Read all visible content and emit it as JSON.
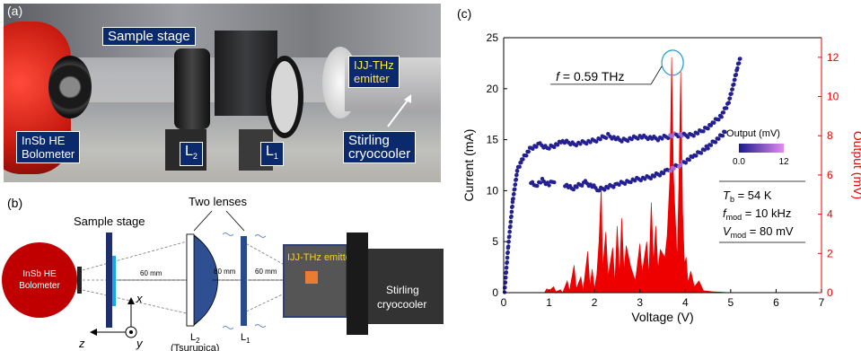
{
  "panel_a": {
    "letter": "(a)",
    "labels": {
      "sample_stage": "Sample stage",
      "ijj_line1": "IJJ-THz",
      "ijj_line2": "emitter",
      "insb_line1": "InSb HE",
      "insb_line2": "Bolometer",
      "l2_main": "L",
      "l2_sub": "2",
      "l1_main": "L",
      "l1_sub": "1",
      "stirling_line1": "Stirling",
      "stirling_line2": "cryocooler"
    }
  },
  "panel_b": {
    "letter": "(b)",
    "two_lenses": "Two lenses",
    "sample_stage": "Sample stage",
    "insb_line1": "InSb HE",
    "insb_line2": "Bolometer",
    "dist1": "60 mm",
    "dist2": "80 mm",
    "dist3": "60 mm",
    "ijj_emitter": "IJJ-THz emitter",
    "stirling_line1": "Stirling",
    "stirling_line2": "cryocooler",
    "l2_main": "L",
    "l2_sub": "2",
    "l2_note": "(Tsurupica)",
    "l1_main": "L",
    "l1_sub": "1",
    "axis_x": "x",
    "axis_y": "y",
    "axis_z": "z"
  },
  "chart_data": {
    "letter": "(c)",
    "type": "scatter",
    "xlabel": "Voltage (V)",
    "ylabel_left": "Current (mA)",
    "ylabel_right": "Output (mV)",
    "xlim": [
      0,
      7
    ],
    "ylim_left": [
      0,
      25
    ],
    "ylim_right": [
      0,
      13
    ],
    "x_ticks": [
      "0",
      "1",
      "2",
      "3",
      "4",
      "5",
      "6",
      "7"
    ],
    "y_left_ticks": [
      "0",
      "5",
      "10",
      "15",
      "20",
      "25"
    ],
    "y_right_ticks": [
      "0",
      "2",
      "4",
      "6",
      "8",
      "10",
      "12"
    ],
    "colorbar": {
      "title": "Output (mV)",
      "min_label": "0.0",
      "max_label": "12",
      "color_low": "#1a1a8c",
      "color_high": "#e28cf0"
    },
    "annotation": {
      "f_symbol": "f",
      "text": " = 0.59 THz",
      "x": 3.72,
      "y_right": 12.0
    },
    "params": [
      {
        "sym": "T",
        "sub": "b",
        "val": " = 54 K"
      },
      {
        "sym": "f",
        "sub": "mod",
        "val": " = 10 kHz"
      },
      {
        "sym": "V",
        "sub": "mod",
        "val": " = 80 mV"
      }
    ],
    "iv_branches": [
      {
        "name": "outer",
        "points": [
          [
            0.02,
            0.2
          ],
          [
            0.1,
            4.5
          ],
          [
            0.2,
            9.0
          ],
          [
            0.3,
            12.0
          ],
          [
            0.4,
            13.0
          ],
          [
            0.5,
            13.6
          ],
          [
            0.6,
            14.2
          ],
          [
            0.8,
            14.5
          ],
          [
            1.0,
            14.2
          ],
          [
            1.3,
            14.8
          ],
          [
            1.6,
            14.6
          ],
          [
            2.0,
            14.9
          ],
          [
            2.3,
            15.4
          ],
          [
            2.6,
            14.9
          ],
          [
            3.0,
            15.3
          ],
          [
            3.4,
            15.1
          ],
          [
            3.8,
            15.5
          ],
          [
            4.1,
            15.4
          ],
          [
            4.4,
            15.9
          ],
          [
            4.6,
            16.6
          ],
          [
            4.8,
            17.4
          ],
          [
            4.95,
            18.6
          ],
          [
            5.05,
            20.2
          ],
          [
            5.15,
            22.1
          ],
          [
            5.22,
            23.2
          ]
        ]
      },
      {
        "name": "inner",
        "points": [
          [
            1.35,
            10.6
          ],
          [
            1.5,
            10.2
          ],
          [
            1.8,
            10.8
          ],
          [
            2.1,
            10.1
          ],
          [
            2.5,
            10.6
          ],
          [
            2.8,
            11.0
          ],
          [
            3.2,
            11.3
          ],
          [
            3.6,
            11.9
          ],
          [
            3.9,
            12.6
          ],
          [
            4.2,
            13.4
          ],
          [
            4.5,
            14.3
          ],
          [
            4.8,
            15.4
          ],
          [
            4.9,
            16.0
          ]
        ]
      },
      {
        "name": "segment",
        "points": [
          [
            0.6,
            10.9
          ],
          [
            0.7,
            10.5
          ],
          [
            0.85,
            11.0
          ],
          [
            1.0,
            10.6
          ],
          [
            1.15,
            11.1
          ]
        ]
      }
    ],
    "output_spectrum": [
      [
        0.0,
        0
      ],
      [
        0.9,
        0
      ],
      [
        0.95,
        0.2
      ],
      [
        1.0,
        0.1
      ],
      [
        1.1,
        0.3
      ],
      [
        1.15,
        0.05
      ],
      [
        1.25,
        0.15
      ],
      [
        1.3,
        0
      ],
      [
        1.4,
        0.6
      ],
      [
        1.45,
        0.1
      ],
      [
        1.55,
        1.4
      ],
      [
        1.6,
        0.2
      ],
      [
        1.7,
        0.8
      ],
      [
        1.75,
        0.1
      ],
      [
        1.85,
        2.1
      ],
      [
        1.9,
        0.3
      ],
      [
        1.95,
        1.2
      ],
      [
        2.0,
        0.2
      ],
      [
        2.05,
        0.9
      ],
      [
        2.1,
        2.6
      ],
      [
        2.15,
        5.4
      ],
      [
        2.18,
        1.2
      ],
      [
        2.25,
        3.1
      ],
      [
        2.3,
        0.8
      ],
      [
        2.4,
        2.3
      ],
      [
        2.45,
        0.5
      ],
      [
        2.5,
        3.4
      ],
      [
        2.55,
        0.9
      ],
      [
        2.6,
        3.8
      ],
      [
        2.65,
        1.1
      ],
      [
        2.7,
        2.4
      ],
      [
        2.8,
        1.3
      ],
      [
        2.9,
        0.6
      ],
      [
        3.0,
        2.5
      ],
      [
        3.05,
        1.0
      ],
      [
        3.15,
        2.6
      ],
      [
        3.2,
        0.9
      ],
      [
        3.25,
        4.6
      ],
      [
        3.3,
        1.5
      ],
      [
        3.35,
        3.4
      ],
      [
        3.4,
        1.2
      ],
      [
        3.45,
        2.2
      ],
      [
        3.55,
        1.8
      ],
      [
        3.6,
        2.9
      ],
      [
        3.66,
        5.8
      ],
      [
        3.7,
        12.0
      ],
      [
        3.74,
        6.0
      ],
      [
        3.78,
        3.8
      ],
      [
        3.82,
        1.6
      ],
      [
        3.86,
        5.6
      ],
      [
        3.9,
        11.3
      ],
      [
        3.94,
        4.2
      ],
      [
        3.98,
        1.5
      ],
      [
        4.02,
        1.8
      ],
      [
        4.06,
        0.5
      ],
      [
        4.12,
        1.1
      ],
      [
        4.2,
        0.3
      ],
      [
        4.3,
        0.6
      ],
      [
        4.4,
        0.1
      ],
      [
        4.6,
        0.05
      ],
      [
        5.0,
        0
      ],
      [
        7.0,
        0
      ]
    ]
  }
}
